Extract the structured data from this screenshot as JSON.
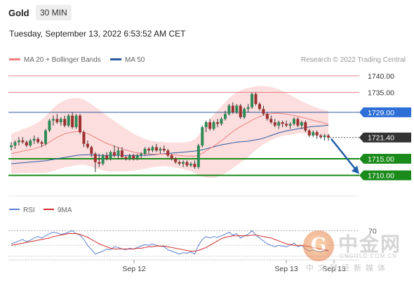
{
  "header": {
    "symbol": "Gold",
    "timeframe": "30 MIN"
  },
  "date_line": "Tuesday, September 13, 2022 6:53:52 AM CET",
  "legend": {
    "ma20": "MA 20 + Bollinger Bands",
    "ma50": "MA 50",
    "credit": "Research © 2022 Trading Central"
  },
  "rsi_legend": {
    "rsi": "RSI",
    "ma9": "9MA"
  },
  "colors": {
    "ma20": "#f08080",
    "ma50": "#2c5aa0",
    "up": "#2e8b57",
    "down": "#a03030",
    "support": "#1a8a1a",
    "pivot": "#2d6fd6",
    "band": "#fcdede"
  },
  "watermark": {
    "logo_char": "G",
    "name": "中金网",
    "url": "CNGOLD.COM.CN",
    "sub": "中文财经新媒体"
  },
  "chart_data": {
    "type": "candlestick",
    "y_range": [
      1704.0,
      1742.5
    ],
    "levels": [
      {
        "value": 1740.0,
        "label": "1740.00",
        "kind": "resistance"
      },
      {
        "value": 1735.0,
        "label": "1735.00",
        "kind": "resistance"
      },
      {
        "value": 1729.0,
        "label": "1729.00",
        "kind": "pivot"
      },
      {
        "value": 1721.4,
        "label": "1721.40",
        "kind": "last"
      },
      {
        "value": 1715.0,
        "label": "1715.00",
        "kind": "support"
      },
      {
        "value": 1710.0,
        "label": "1710.00",
        "kind": "support"
      }
    ],
    "x_labels": [
      "Sep 12",
      "Sep 13",
      "Sep 13"
    ],
    "candles": [
      [
        1718.5,
        1720.0,
        1717.5,
        1719.0
      ],
      [
        1719.0,
        1720.5,
        1718.0,
        1720.0
      ],
      [
        1720.0,
        1721.5,
        1719.0,
        1720.5
      ],
      [
        1720.5,
        1721.5,
        1719.5,
        1720.0
      ],
      [
        1720.0,
        1720.5,
        1718.5,
        1719.0
      ],
      [
        1719.0,
        1721.0,
        1718.5,
        1720.5
      ],
      [
        1720.5,
        1722.0,
        1719.5,
        1721.0
      ],
      [
        1721.0,
        1721.5,
        1719.5,
        1720.0
      ],
      [
        1720.0,
        1720.5,
        1718.5,
        1719.5
      ],
      [
        1719.5,
        1724.0,
        1719.0,
        1723.5
      ],
      [
        1723.5,
        1727.0,
        1723.0,
        1726.5
      ],
      [
        1726.5,
        1728.0,
        1725.0,
        1727.0
      ],
      [
        1727.0,
        1728.5,
        1725.5,
        1726.0
      ],
      [
        1726.0,
        1727.5,
        1725.0,
        1727.0
      ],
      [
        1727.0,
        1728.0,
        1724.5,
        1725.0
      ],
      [
        1725.0,
        1728.5,
        1724.5,
        1728.0
      ],
      [
        1728.0,
        1729.0,
        1724.0,
        1724.5
      ],
      [
        1724.5,
        1728.5,
        1724.0,
        1728.0
      ],
      [
        1728.0,
        1728.5,
        1722.5,
        1723.0
      ],
      [
        1723.0,
        1723.5,
        1718.5,
        1719.5
      ],
      [
        1719.5,
        1720.5,
        1718.0,
        1718.5
      ],
      [
        1718.5,
        1719.0,
        1715.5,
        1716.5
      ],
      [
        1716.5,
        1717.0,
        1711.0,
        1714.0
      ],
      [
        1714.0,
        1716.5,
        1712.5,
        1713.5
      ],
      [
        1713.5,
        1716.5,
        1713.0,
        1716.0
      ],
      [
        1716.0,
        1717.0,
        1714.5,
        1715.0
      ],
      [
        1715.0,
        1717.5,
        1714.5,
        1717.0
      ],
      [
        1717.0,
        1719.0,
        1715.5,
        1716.0
      ],
      [
        1716.0,
        1718.5,
        1715.0,
        1717.5
      ],
      [
        1717.5,
        1718.5,
        1715.0,
        1715.5
      ],
      [
        1715.5,
        1716.0,
        1714.5,
        1715.0
      ],
      [
        1715.0,
        1716.5,
        1714.5,
        1716.0
      ],
      [
        1716.0,
        1716.5,
        1714.5,
        1715.0
      ],
      [
        1715.0,
        1716.5,
        1714.5,
        1716.0
      ],
      [
        1716.0,
        1717.0,
        1715.0,
        1716.5
      ],
      [
        1716.5,
        1718.5,
        1716.0,
        1718.0
      ],
      [
        1718.0,
        1718.5,
        1716.5,
        1717.5
      ],
      [
        1717.5,
        1719.0,
        1717.0,
        1718.5
      ],
      [
        1718.5,
        1719.5,
        1717.0,
        1717.5
      ],
      [
        1717.5,
        1718.5,
        1716.5,
        1718.0
      ],
      [
        1718.0,
        1719.0,
        1717.0,
        1717.5
      ],
      [
        1717.5,
        1718.0,
        1715.5,
        1716.0
      ],
      [
        1716.0,
        1716.5,
        1714.5,
        1715.0
      ],
      [
        1715.0,
        1715.5,
        1713.5,
        1714.0
      ],
      [
        1714.0,
        1714.5,
        1713.0,
        1713.5
      ],
      [
        1713.5,
        1714.5,
        1712.5,
        1714.0
      ],
      [
        1714.0,
        1714.5,
        1712.5,
        1713.0
      ],
      [
        1713.0,
        1714.0,
        1712.5,
        1713.5
      ],
      [
        1713.5,
        1714.5,
        1712.0,
        1712.5
      ],
      [
        1712.5,
        1719.5,
        1712.0,
        1719.0
      ],
      [
        1719.0,
        1725.0,
        1718.5,
        1724.5
      ],
      [
        1724.5,
        1726.5,
        1723.0,
        1726.0
      ],
      [
        1726.0,
        1727.0,
        1723.5,
        1724.0
      ],
      [
        1724.0,
        1726.5,
        1723.5,
        1726.0
      ],
      [
        1726.0,
        1727.0,
        1724.5,
        1725.5
      ],
      [
        1725.5,
        1727.5,
        1725.0,
        1727.0
      ],
      [
        1727.0,
        1729.5,
        1726.5,
        1728.5
      ],
      [
        1728.5,
        1731.5,
        1728.0,
        1731.0
      ],
      [
        1731.0,
        1732.0,
        1728.5,
        1729.0
      ],
      [
        1729.0,
        1731.5,
        1728.5,
        1731.0
      ],
      [
        1731.0,
        1731.5,
        1727.0,
        1727.5
      ],
      [
        1727.5,
        1730.5,
        1727.0,
        1730.0
      ],
      [
        1730.0,
        1731.5,
        1729.0,
        1730.5
      ],
      [
        1730.5,
        1735.0,
        1730.0,
        1734.5
      ],
      [
        1734.5,
        1735.0,
        1731.0,
        1731.5
      ],
      [
        1731.5,
        1732.0,
        1729.5,
        1730.0
      ],
      [
        1730.0,
        1731.0,
        1728.0,
        1728.5
      ],
      [
        1728.5,
        1729.0,
        1726.5,
        1727.0
      ],
      [
        1727.0,
        1728.0,
        1725.5,
        1726.0
      ],
      [
        1726.0,
        1727.0,
        1724.5,
        1725.0
      ],
      [
        1725.0,
        1726.5,
        1724.0,
        1726.0
      ],
      [
        1726.0,
        1726.5,
        1724.5,
        1725.5
      ],
      [
        1725.5,
        1726.5,
        1724.5,
        1725.0
      ],
      [
        1725.0,
        1726.0,
        1724.0,
        1725.5
      ],
      [
        1725.5,
        1727.5,
        1725.0,
        1727.0
      ],
      [
        1727.0,
        1727.5,
        1724.5,
        1725.0
      ],
      [
        1725.0,
        1726.5,
        1724.0,
        1726.0
      ],
      [
        1726.0,
        1726.5,
        1723.0,
        1723.5
      ],
      [
        1723.5,
        1724.0,
        1721.5,
        1722.0
      ],
      [
        1722.0,
        1723.5,
        1721.5,
        1723.0
      ],
      [
        1723.0,
        1723.5,
        1721.0,
        1722.0
      ],
      [
        1722.0,
        1722.5,
        1721.0,
        1721.5
      ],
      [
        1721.5,
        1722.5,
        1720.5,
        1722.0
      ],
      [
        1722.0,
        1722.5,
        1720.5,
        1721.4
      ]
    ],
    "ma20": [
      1716.5,
      1716.8,
      1717.0,
      1717.3,
      1717.5,
      1717.8,
      1718.0,
      1718.4,
      1718.8,
      1719.3,
      1720.0,
      1720.8,
      1721.5,
      1722.0,
      1722.5,
      1722.8,
      1723.0,
      1723.2,
      1723.2,
      1723.0,
      1722.6,
      1722.0,
      1721.4,
      1720.8,
      1720.2,
      1719.6,
      1719.2,
      1718.8,
      1718.4,
      1718.0,
      1717.6,
      1717.3,
      1717.0,
      1716.8,
      1716.6,
      1716.5,
      1716.4,
      1716.4,
      1716.4,
      1716.4,
      1716.4,
      1716.3,
      1716.2,
      1716.1,
      1716.0,
      1715.9,
      1715.8,
      1715.8,
      1715.8,
      1716.0,
      1716.6,
      1717.4,
      1718.1,
      1718.8,
      1719.6,
      1720.4,
      1721.3,
      1722.3,
      1723.2,
      1724.0,
      1724.7,
      1725.3,
      1725.9,
      1726.6,
      1727.2,
      1727.7,
      1728.1,
      1728.4,
      1728.6,
      1728.7,
      1728.7,
      1728.6,
      1728.4,
      1728.2,
      1728.0,
      1727.8,
      1727.5,
      1727.2,
      1726.9,
      1726.6,
      1726.3,
      1726.0,
      1725.7,
      1725.4
    ],
    "ma50": [
      1713.5,
      1713.6,
      1713.7,
      1713.8,
      1713.9,
      1714.0,
      1714.1,
      1714.2,
      1714.3,
      1714.4,
      1714.6,
      1714.8,
      1715.0,
      1715.2,
      1715.4,
      1715.6,
      1715.8,
      1716.0,
      1716.1,
      1716.2,
      1716.2,
      1716.2,
      1716.1,
      1716.0,
      1716.0,
      1716.0,
      1716.0,
      1716.0,
      1716.0,
      1716.0,
      1716.0,
      1716.0,
      1716.0,
      1716.0,
      1716.0,
      1716.0,
      1716.1,
      1716.2,
      1716.3,
      1716.4,
      1716.5,
      1716.6,
      1716.7,
      1716.8,
      1716.9,
      1717.0,
      1717.1,
      1717.2,
      1717.3,
      1717.5,
      1717.7,
      1718.0,
      1718.3,
      1718.6,
      1718.9,
      1719.2,
      1719.4,
      1719.6,
      1719.8,
      1720.0,
      1720.1,
      1720.2,
      1720.3,
      1720.5,
      1720.7,
      1720.9,
      1721.2,
      1721.6,
      1722.0,
      1722.4,
      1722.8,
      1723.1,
      1723.4,
      1723.6,
      1723.8,
      1724.0,
      1724.2,
      1724.4,
      1724.6,
      1724.7,
      1724.8,
      1724.9,
      1725.0,
      1725.1
    ],
    "bb_width": [
      6,
      6.2,
      6.4,
      6.6,
      6.8,
      7,
      7.3,
      7.6,
      8,
      8.5,
      9,
      9.5,
      9.8,
      10,
      10.1,
      10.2,
      10.2,
      10.1,
      10,
      9.8,
      9.6,
      9.4,
      9.2,
      9,
      8.7,
      8.4,
      8,
      7.6,
      7.2,
      6.8,
      6.4,
      6,
      5.6,
      5.2,
      4.8,
      4.5,
      4.2,
      4,
      3.8,
      3.7,
      3.6,
      3.6,
      3.7,
      3.8,
      3.9,
      4,
      4.2,
      4.5,
      5,
      6,
      7,
      8,
      8.8,
      9.5,
      10,
      10.4,
      10.7,
      10.9,
      11,
      11,
      10.9,
      10.7,
      10.4,
      10,
      9.6,
      9.2,
      8.8,
      8.4,
      8,
      7.6,
      7.2,
      6.8,
      6.4,
      6,
      5.6,
      5.2,
      4.8,
      4.6,
      4.4,
      4.2,
      4.1,
      4,
      4,
      4
    ],
    "forecast_arrow": {
      "from": 1721.0,
      "to": 1710.0
    },
    "rsi": {
      "level_label": "70",
      "rsi": [
        52,
        54,
        56,
        58,
        55,
        57,
        60,
        62,
        60,
        63,
        66,
        68,
        67,
        65,
        66,
        68,
        70,
        66,
        64,
        58,
        50,
        44,
        38,
        40,
        42,
        45,
        44,
        48,
        47,
        45,
        44,
        46,
        45,
        47,
        49,
        51,
        50,
        52,
        50,
        49,
        48,
        44,
        42,
        40,
        38,
        40,
        39,
        41,
        38,
        50,
        58,
        62,
        60,
        62,
        61,
        63,
        65,
        68,
        64,
        66,
        60,
        63,
        65,
        70,
        64,
        60,
        56,
        52,
        50,
        48,
        50,
        49,
        48,
        50,
        53,
        48,
        50,
        45,
        42,
        44,
        42,
        41,
        43,
        42
      ],
      "ma9": [
        50,
        51,
        52,
        53,
        54,
        55,
        56,
        57,
        58,
        59,
        60,
        62,
        63,
        64,
        65,
        66,
        66,
        66,
        65,
        63,
        61,
        58,
        55,
        52,
        50,
        48,
        46,
        45,
        45,
        45,
        45,
        45,
        45,
        46,
        46,
        47,
        48,
        48,
        49,
        49,
        49,
        48,
        47,
        46,
        45,
        44,
        43,
        42,
        42,
        43,
        45,
        47,
        50,
        53,
        56,
        59,
        61,
        62,
        63,
        63,
        63,
        63,
        63,
        64,
        64,
        63,
        62,
        61,
        60,
        58,
        56,
        54,
        52,
        51,
        50,
        50,
        50,
        49,
        48,
        47,
        46,
        45,
        44,
        43
      ]
    }
  }
}
